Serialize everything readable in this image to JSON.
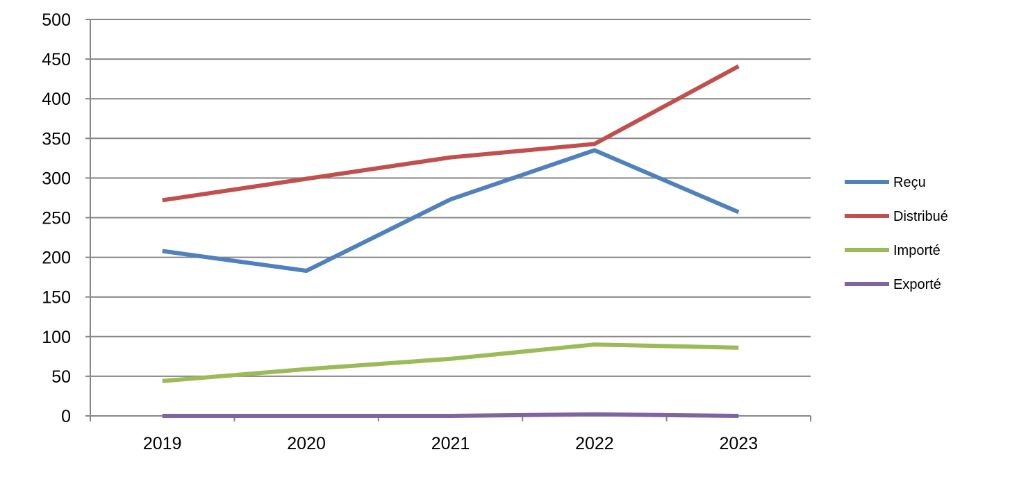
{
  "chart_data": {
    "type": "line",
    "title": "",
    "xlabel": "",
    "ylabel": "",
    "categories": [
      "2019",
      "2020",
      "2021",
      "2022",
      "2023"
    ],
    "ylim": [
      0,
      500
    ],
    "yticks": [
      0,
      50,
      100,
      150,
      200,
      250,
      300,
      350,
      400,
      450,
      500
    ],
    "grid": true,
    "legend_position": "right",
    "series": [
      {
        "name": "Reçu",
        "color": "#4F81BD",
        "values": [
          208,
          183,
          273,
          335,
          257
        ]
      },
      {
        "name": "Distribué",
        "color": "#C0504D",
        "values": [
          272,
          299,
          326,
          343,
          441
        ]
      },
      {
        "name": "Importé",
        "color": "#9BBB59",
        "values": [
          44,
          59,
          72,
          90,
          86
        ]
      },
      {
        "name": "Exporté",
        "color": "#8064A2",
        "values": [
          0,
          0,
          0,
          2,
          0
        ]
      }
    ]
  }
}
